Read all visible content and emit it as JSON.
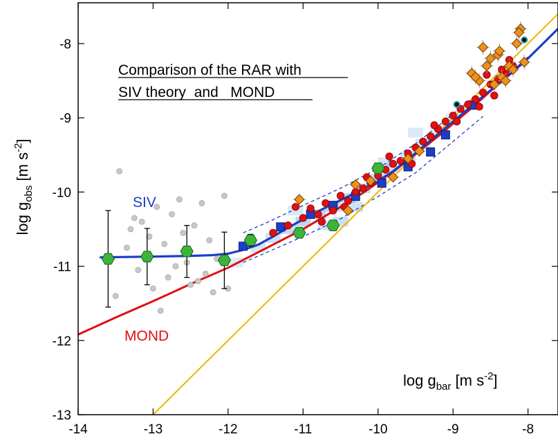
{
  "chart_data": {
    "type": "scatter",
    "title": "Comparison of the RAR with SIV theory  and   MOND",
    "title_lines": [
      "Comparison of the RAR with",
      "SIV theory  and   MOND"
    ],
    "xlabel": {
      "base": "log g",
      "sub": "bar",
      "units_open": " [m s",
      "sup": "-2",
      "units_close": "]"
    },
    "ylabel": {
      "base": "log g",
      "sub": "obs",
      "units_open": " [m s",
      "sup": "-2",
      "units_close": "]"
    },
    "xlim": [
      -14,
      -7.6
    ],
    "ylim": [
      -13,
      -7.45
    ],
    "x_ticks": [
      -14,
      -13,
      -12,
      -11,
      -10,
      -9,
      -8
    ],
    "y_ticks": [
      -13,
      -12,
      -11,
      -10,
      -9,
      -8
    ],
    "x_tick_labels": [
      "-14",
      "-13",
      "-12",
      "-11",
      "-10",
      "-9",
      "-8"
    ],
    "y_tick_labels": [
      "-13",
      "-12",
      "-11",
      "-10",
      "-9",
      "-8"
    ],
    "grid": false,
    "legend": "none",
    "annotations": [
      {
        "text": "SIV",
        "color": "#1a3fc7",
        "x": -12.95,
        "y": -10.17
      },
      {
        "text": "MOND",
        "color": "#e01010",
        "x": -12.85,
        "y": -12.0
      }
    ],
    "series": [
      {
        "name": "SIV",
        "kind": "line",
        "color": "#1a3fc7",
        "x": [
          -13.7,
          -13.0,
          -12.5,
          -12.2,
          -12.0,
          -11.8,
          -11.6,
          -11.4,
          -11.2,
          -11.0,
          -10.8,
          -10.6,
          -10.4,
          -10.2,
          -10.0,
          -9.8,
          -9.6,
          -9.4,
          -9.2,
          -9.0,
          -8.8,
          -8.6,
          -8.4,
          -8.2,
          -8.0,
          -7.8,
          -7.6
        ],
        "y": [
          -10.88,
          -10.87,
          -10.86,
          -10.85,
          -10.83,
          -10.78,
          -10.71,
          -10.6,
          -10.48,
          -10.37,
          -10.26,
          -10.16,
          -10.06,
          -9.96,
          -9.85,
          -9.72,
          -9.56,
          -9.39,
          -9.22,
          -9.05,
          -8.88,
          -8.71,
          -8.55,
          -8.38,
          -8.2,
          -8.0,
          -7.8
        ]
      },
      {
        "name": "MOND",
        "kind": "line",
        "color": "#e01010",
        "x": [
          -14.0,
          -13.5,
          -13.0,
          -12.5,
          -12.0,
          -11.5,
          -11.0,
          -10.8,
          -10.6,
          -10.4,
          -10.2,
          -10.0,
          -9.8,
          -9.6,
          -9.4,
          -9.2,
          -9.0,
          -8.8,
          -8.6,
          -8.4,
          -8.2,
          -8.0
        ],
        "y": [
          -11.92,
          -11.69,
          -11.47,
          -11.24,
          -11.02,
          -10.76,
          -10.5,
          -10.38,
          -10.26,
          -10.14,
          -10.01,
          -9.87,
          -9.73,
          -9.57,
          -9.41,
          -9.25,
          -9.08,
          -8.91,
          -8.73,
          -8.55,
          -8.37,
          -8.19
        ]
      },
      {
        "name": "",
        "kind": "line",
        "color": "#f0b400",
        "x": [
          -13.0,
          -7.6
        ],
        "y": [
          -13.0,
          -7.6
        ]
      },
      {
        "name": "",
        "kind": "dashed-band",
        "color": "#1a3fc7",
        "x": [
          -11.8,
          -11.5,
          -11.0,
          -10.5,
          -10.0,
          -9.5,
          -9.0,
          -8.6
        ],
        "y_upper": [
          -10.55,
          -10.42,
          -10.18,
          -9.95,
          -9.68,
          -9.35,
          -8.95,
          -8.62
        ],
        "y_lower": [
          -10.95,
          -10.82,
          -10.6,
          -10.36,
          -10.06,
          -9.74,
          -9.32,
          -8.98
        ]
      },
      {
        "name": "",
        "kind": "density",
        "color": "#4a90d9",
        "x": [
          -11.9,
          -11.6,
          -11.4,
          -11.2,
          -11.0,
          -10.8,
          -10.6,
          -10.4,
          -10.2,
          -10.0,
          -9.8,
          -9.6,
          -9.4,
          -9.2,
          -9.0,
          -10.7,
          -10.3,
          -9.9,
          -9.5,
          -11.1,
          -10.5
        ],
        "y": [
          -10.95,
          -10.75,
          -10.62,
          -10.5,
          -10.4,
          -10.3,
          -10.2,
          -10.08,
          -9.95,
          -9.82,
          -9.67,
          -9.52,
          -9.35,
          -9.18,
          -9.02,
          -10.45,
          -10.2,
          -9.6,
          -9.2,
          -10.25,
          -10.4
        ],
        "intensity": [
          0.25,
          0.4,
          0.55,
          0.7,
          0.85,
          0.9,
          0.85,
          0.8,
          0.7,
          0.65,
          0.55,
          0.45,
          0.4,
          0.3,
          0.25,
          0.45,
          0.5,
          0.4,
          0.3,
          0.35,
          0.6
        ]
      },
      {
        "name": "",
        "kind": "points",
        "marker": "circle",
        "color": "#c8c8c8",
        "x": [
          -13.45,
          -13.6,
          -13.3,
          -13.15,
          -13.05,
          -12.95,
          -12.85,
          -12.75,
          -12.6,
          -12.45,
          -12.35,
          -12.25,
          -12.15,
          -12.05,
          -13.5,
          -13.2,
          -13.0,
          -12.9,
          -12.7,
          -12.55,
          -12.4,
          -12.3,
          -12.2,
          -13.35,
          -13.1,
          -12.8,
          -12.65,
          -12.5,
          -12.0,
          -13.25
        ],
        "y": [
          -9.72,
          -10.9,
          -10.5,
          -10.4,
          -10.6,
          -10.2,
          -10.7,
          -10.3,
          -10.55,
          -10.45,
          -10.15,
          -10.65,
          -10.9,
          -10.05,
          -11.4,
          -11.05,
          -11.3,
          -11.6,
          -11.0,
          -10.95,
          -11.2,
          -11.1,
          -11.35,
          -10.75,
          -10.85,
          -11.15,
          -10.1,
          -11.25,
          -11.3,
          -10.35
        ]
      },
      {
        "name": "",
        "kind": "errorbar-points",
        "marker": "hexagon",
        "color": "#3ab53a",
        "x": [
          -13.6,
          -13.08,
          -12.55,
          -12.05,
          -11.7,
          -11.05,
          -10.6,
          -10.0
        ],
        "y": [
          -10.9,
          -10.87,
          -10.8,
          -10.92,
          -10.65,
          -10.55,
          -10.45,
          -9.68
        ],
        "yerr": [
          0.65,
          0.38,
          0.35,
          0.38,
          0.08,
          0.06,
          0.06,
          0.05
        ]
      },
      {
        "name": "",
        "kind": "points",
        "marker": "square",
        "color": "#1a3fc7",
        "x": [
          -11.8,
          -11.3,
          -10.9,
          -10.6,
          -10.3,
          -9.95,
          -9.6,
          -9.3,
          -9.1,
          -8.75
        ],
        "y": [
          -10.73,
          -10.47,
          -10.3,
          -10.18,
          -10.06,
          -9.88,
          -9.66,
          -9.46,
          -9.23,
          -8.83
        ]
      },
      {
        "name": "",
        "kind": "points",
        "marker": "circle",
        "color": "#e01010",
        "x": [
          -11.4,
          -11.2,
          -11.0,
          -10.9,
          -10.8,
          -10.7,
          -10.6,
          -10.5,
          -10.4,
          -10.3,
          -10.2,
          -10.1,
          -10.0,
          -9.9,
          -9.8,
          -9.7,
          -9.6,
          -9.5,
          -9.4,
          -9.3,
          -9.2,
          -9.1,
          -9.0,
          -8.9,
          -8.8,
          -8.7,
          -8.6,
          -8.5,
          -8.4,
          -8.3,
          -8.2,
          -11.1,
          -10.75,
          -10.45,
          -10.15,
          -9.85,
          -9.55,
          -9.25,
          -8.95,
          -8.65,
          -8.35,
          -8.25,
          -8.45,
          -8.55
        ],
        "y": [
          -10.55,
          -10.45,
          -10.35,
          -10.22,
          -10.3,
          -10.15,
          -10.25,
          -10.05,
          -10.12,
          -10.0,
          -9.95,
          -9.88,
          -9.78,
          -9.7,
          -9.62,
          -9.58,
          -9.48,
          -9.4,
          -9.32,
          -9.25,
          -9.15,
          -9.05,
          -8.97,
          -8.88,
          -8.82,
          -8.75,
          -8.66,
          -8.55,
          -8.48,
          -8.4,
          -8.3,
          -10.2,
          -10.4,
          -10.2,
          -9.8,
          -9.52,
          -9.62,
          -9.1,
          -9.05,
          -8.85,
          -8.35,
          -8.22,
          -8.7,
          -8.42
        ]
      },
      {
        "name": "",
        "kind": "errorbar-points",
        "marker": "diamond",
        "color": "#f0901a",
        "x": [
          -11.05,
          -10.4,
          -10.3,
          -10.1,
          -9.8,
          -9.6,
          -9.45,
          -8.75,
          -8.6,
          -8.5,
          -8.4,
          -8.35,
          -8.3,
          -8.25,
          -8.15,
          -8.1,
          -8.65,
          -8.55,
          -8.45,
          -8.38,
          -8.05,
          -8.7,
          -8.2,
          -8.12
        ],
        "y": [
          -10.1,
          -10.25,
          -9.9,
          -9.85,
          -9.8,
          -9.55,
          -9.45,
          -8.4,
          -8.05,
          -8.2,
          -8.15,
          -8.45,
          -8.5,
          -8.3,
          -8.0,
          -7.8,
          -8.5,
          -8.3,
          -8.55,
          -8.1,
          -8.25,
          -8.45,
          -8.35,
          -7.85
        ],
        "yerr": [
          0.08,
          0.05,
          0.05,
          0.05,
          0.05,
          0.05,
          0.05,
          0.1,
          0.1,
          0.1,
          0.1,
          0.1,
          0.1,
          0.1,
          0.1,
          0.1,
          0.1,
          0.1,
          0.1,
          0.1,
          0.1,
          0.1,
          0.1,
          0.1
        ]
      },
      {
        "name": "",
        "kind": "points",
        "marker": "circle",
        "color": "#20a0a0",
        "x": [
          -8.95,
          -8.05
        ],
        "y": [
          -8.82,
          -7.95
        ]
      }
    ]
  }
}
